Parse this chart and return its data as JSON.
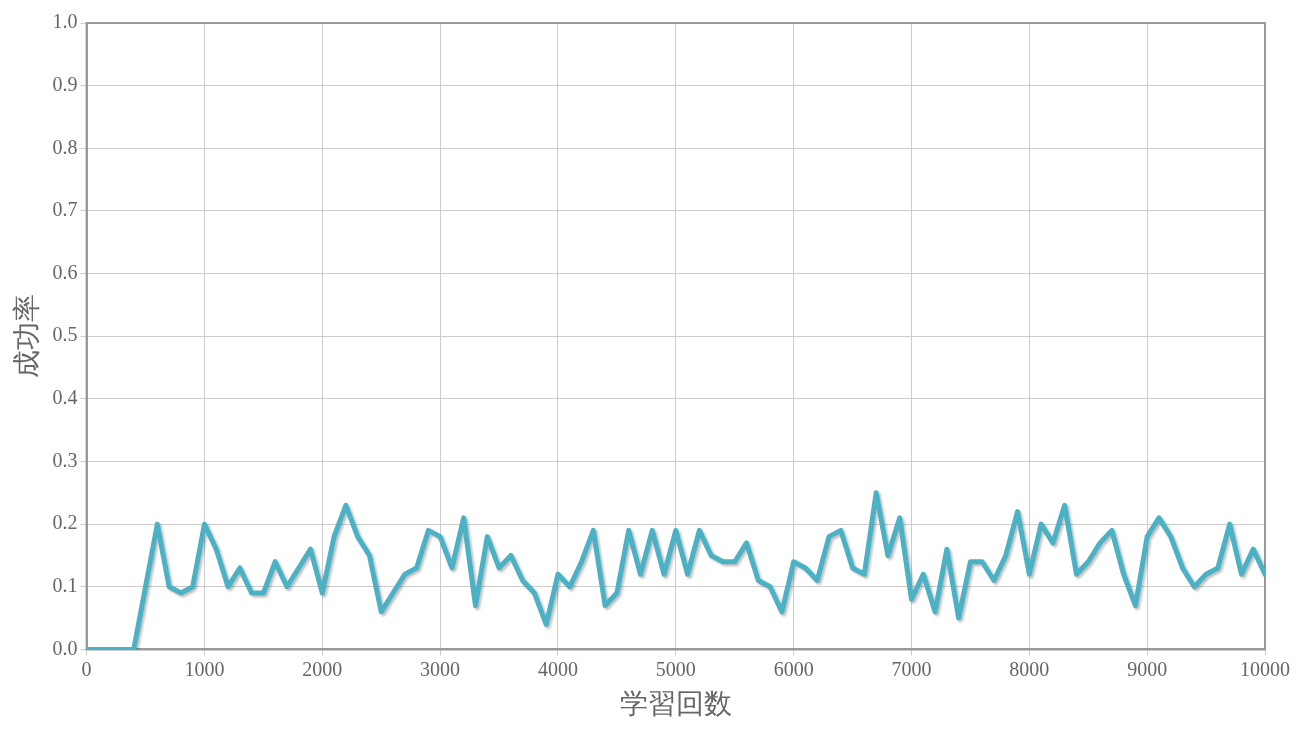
{
  "chart_data": {
    "type": "line",
    "xlabel": "学習回数",
    "ylabel": "成功率",
    "x": [
      0,
      100,
      200,
      300,
      400,
      500,
      600,
      700,
      800,
      900,
      1000,
      1100,
      1200,
      1300,
      1400,
      1500,
      1600,
      1700,
      1800,
      1900,
      2000,
      2100,
      2200,
      2300,
      2400,
      2500,
      2600,
      2700,
      2800,
      2900,
      3000,
      3100,
      3200,
      3300,
      3400,
      3500,
      3600,
      3700,
      3800,
      3900,
      4000,
      4100,
      4200,
      4300,
      4400,
      4500,
      4600,
      4700,
      4800,
      4900,
      5000,
      5100,
      5200,
      5300,
      5400,
      5500,
      5600,
      5700,
      5800,
      5900,
      6000,
      6100,
      6200,
      6300,
      6400,
      6500,
      6600,
      6700,
      6800,
      6900,
      7000,
      7100,
      7200,
      7300,
      7400,
      7500,
      7600,
      7700,
      7800,
      7900,
      8000,
      8100,
      8200,
      8300,
      8400,
      8500,
      8600,
      8700,
      8800,
      8900,
      9000,
      9100,
      9200,
      9300,
      9400,
      9500,
      9600,
      9700,
      9800,
      9900,
      10000
    ],
    "series": [
      {
        "color": "#4bb2c5",
        "values": [
          0,
          0,
          0,
          0,
          0,
          0.1,
          0.2,
          0.1,
          0.09,
          0.1,
          0.2,
          0.16,
          0.1,
          0.13,
          0.09,
          0.09,
          0.14,
          0.1,
          0.13,
          0.16,
          0.09,
          0.18,
          0.23,
          0.18,
          0.15,
          0.06,
          0.09,
          0.12,
          0.13,
          0.19,
          0.18,
          0.13,
          0.21,
          0.07,
          0.18,
          0.13,
          0.15,
          0.11,
          0.09,
          0.04,
          0.12,
          0.1,
          0.14,
          0.19,
          0.07,
          0.09,
          0.19,
          0.12,
          0.19,
          0.12,
          0.19,
          0.12,
          0.19,
          0.15,
          0.14,
          0.14,
          0.17,
          0.11,
          0.1,
          0.06,
          0.14,
          0.13,
          0.11,
          0.18,
          0.19,
          0.13,
          0.12,
          0.25,
          0.15,
          0.21,
          0.08,
          0.12,
          0.06,
          0.16,
          0.05,
          0.14,
          0.14,
          0.11,
          0.15,
          0.22,
          0.12,
          0.2,
          0.17,
          0.23,
          0.12,
          0.14,
          0.17,
          0.19,
          0.12,
          0.07,
          0.18,
          0.21,
          0.18,
          0.13,
          0.1,
          0.12,
          0.13,
          0.2,
          0.12,
          0.16,
          0.12
        ]
      }
    ],
    "xlim": [
      0,
      10000
    ],
    "xticks": [
      0,
      1000,
      2000,
      3000,
      4000,
      5000,
      6000,
      7000,
      8000,
      9000,
      10000
    ],
    "ylim": [
      0,
      1
    ],
    "yticks": [
      {
        "value": 0,
        "label": "0.0"
      },
      {
        "value": 0.1,
        "label": "0.1"
      },
      {
        "value": 0.2,
        "label": "0.2"
      },
      {
        "value": 0.3,
        "label": "0.3"
      },
      {
        "value": 0.4,
        "label": "0.4"
      },
      {
        "value": 0.5,
        "label": "0.5"
      },
      {
        "value": 0.6,
        "label": "0.6"
      },
      {
        "value": 0.7,
        "label": "0.7"
      },
      {
        "value": 0.8,
        "label": "0.8"
      },
      {
        "value": 0.9,
        "label": "0.9"
      },
      {
        "value": 1,
        "label": "1.0"
      }
    ],
    "grid": true,
    "legend": false,
    "marker": "none",
    "line_style": "solid"
  }
}
